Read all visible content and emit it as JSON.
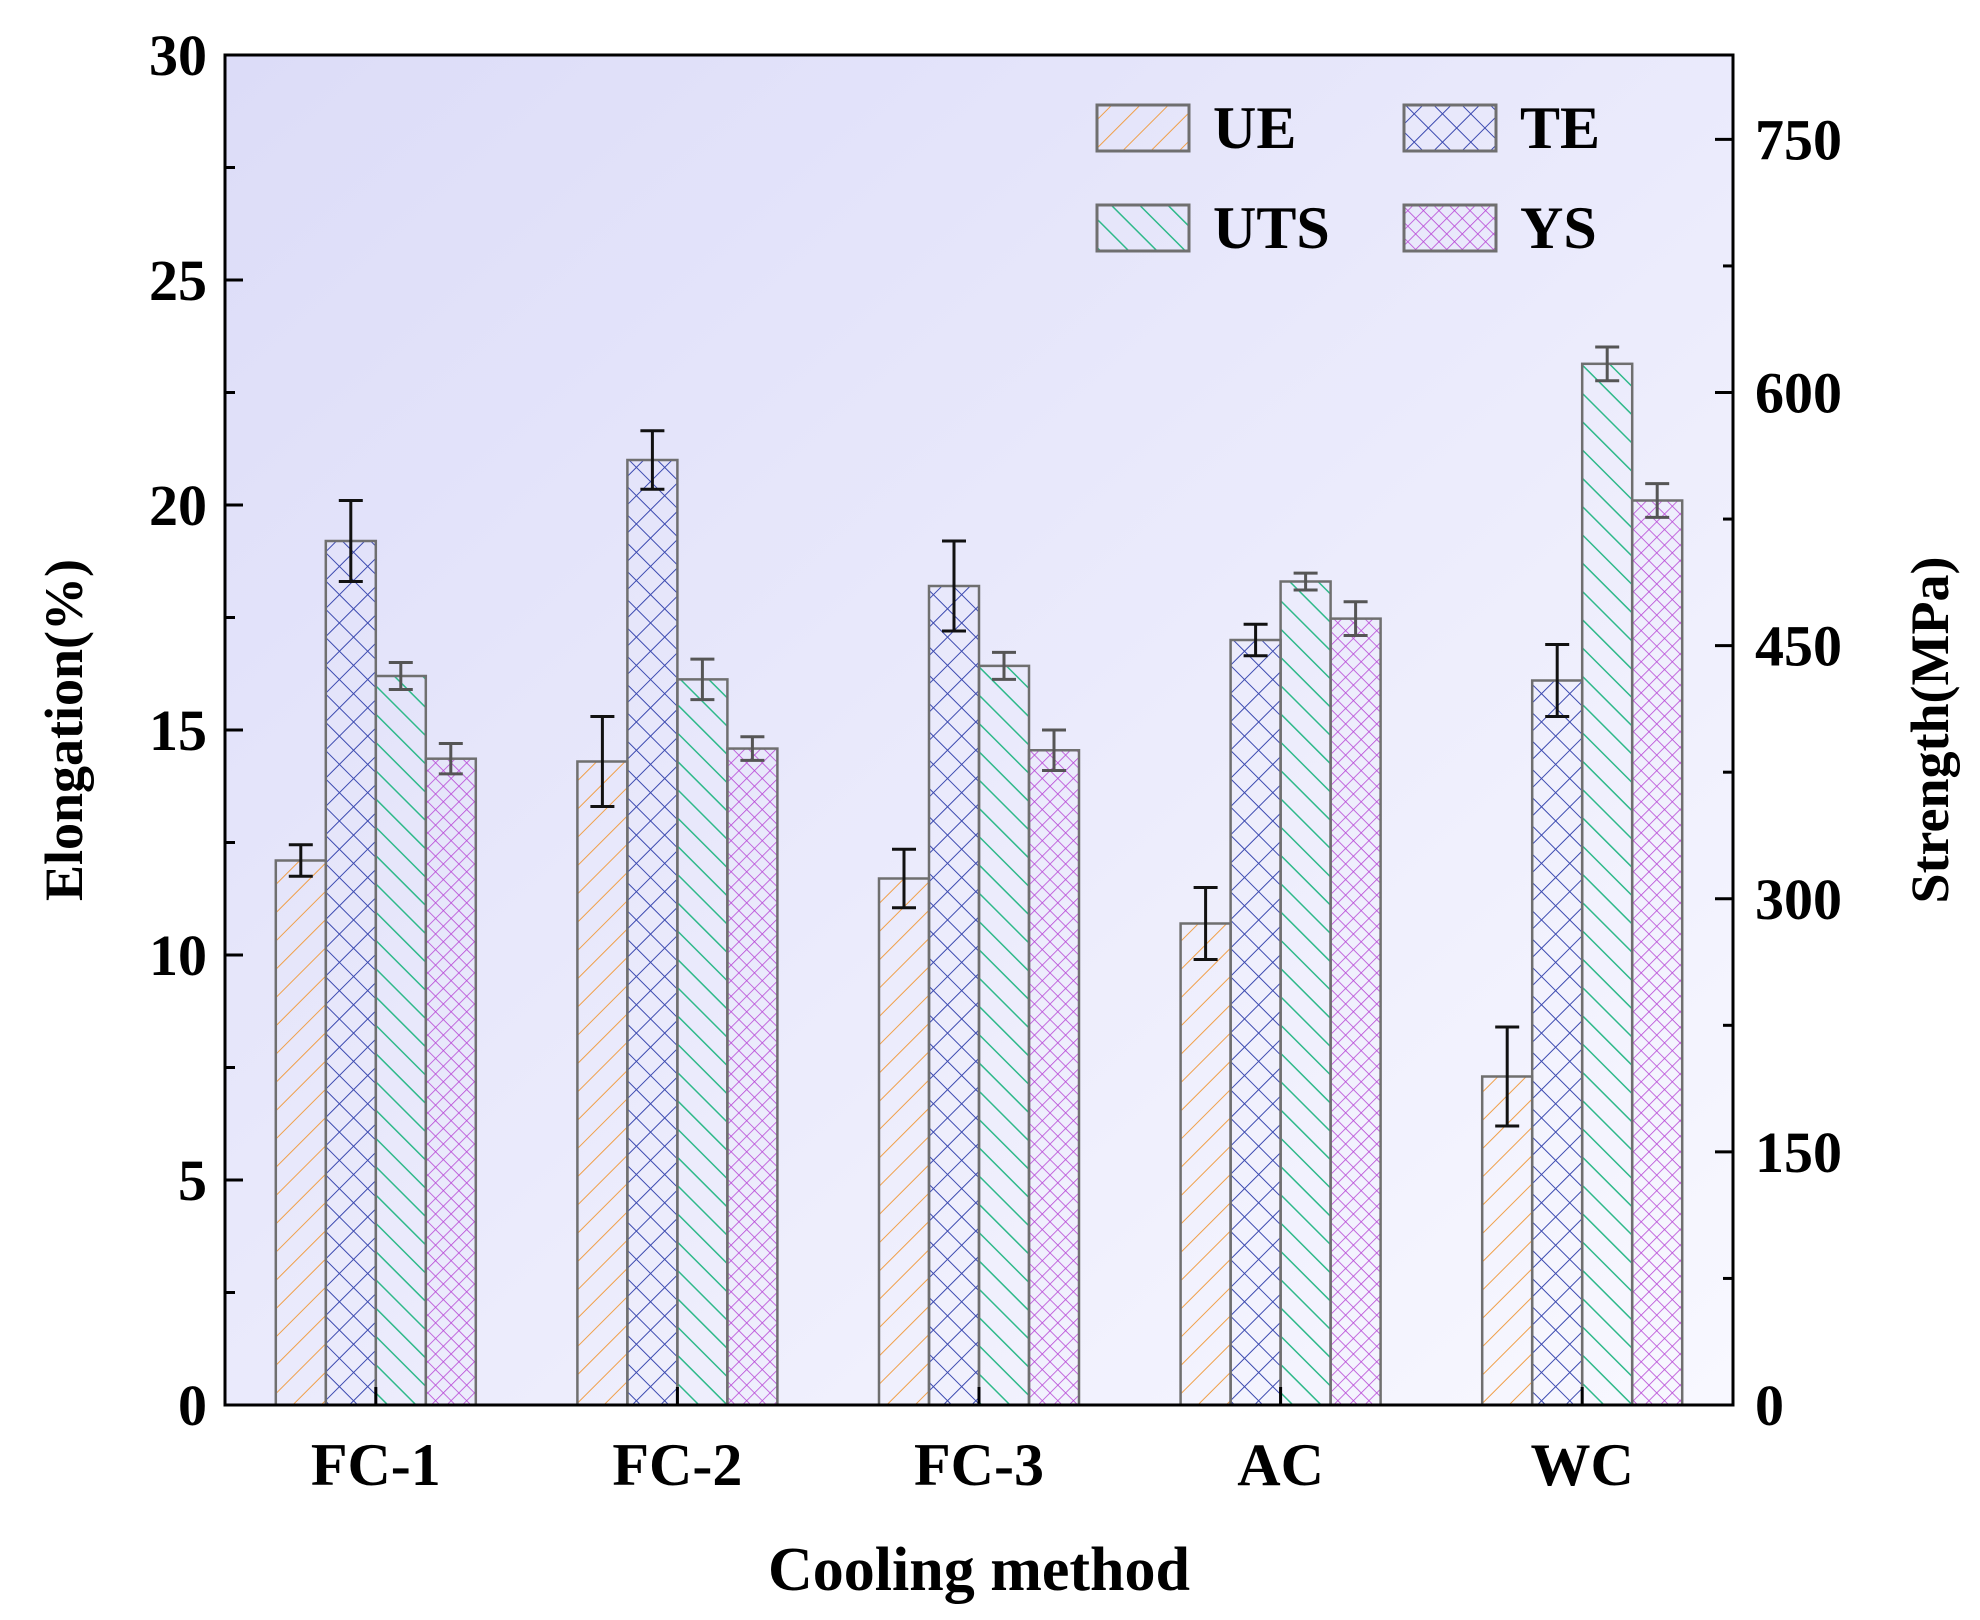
{
  "chart_data": {
    "type": "bar",
    "categories": [
      "FC-1",
      "FC-2",
      "FC-3",
      "AC",
      "WC"
    ],
    "xlabel": "Cooling method",
    "ylabel_left": "Elongation(%)",
    "ylabel_right": "Strength(MPa)",
    "ylim_left": [
      0,
      30
    ],
    "yticks_left": [
      0,
      5,
      10,
      15,
      20,
      25,
      30
    ],
    "ylim_right": [
      0,
      800
    ],
    "yticks_right": [
      0,
      150,
      300,
      450,
      600,
      750
    ],
    "series": [
      {
        "name": "UE",
        "axis": "left",
        "pattern": "hatch-diag-up",
        "color": "#f0a04a",
        "values": [
          12.1,
          14.3,
          11.7,
          10.7,
          7.3
        ],
        "errors": [
          0.35,
          1.0,
          0.65,
          0.8,
          1.1
        ]
      },
      {
        "name": "TE",
        "axis": "left",
        "pattern": "crosshatch",
        "color": "#3d4bb0",
        "values": [
          19.2,
          21.0,
          18.2,
          17.0,
          16.1
        ],
        "errors": [
          0.9,
          0.65,
          1.0,
          0.35,
          0.8
        ]
      },
      {
        "name": "UTS",
        "axis": "right",
        "pattern": "hatch-diag-down",
        "color": "#2fb98a",
        "values": [
          432,
          430,
          438,
          488,
          617
        ],
        "errors": [
          8,
          12,
          8,
          5,
          10
        ]
      },
      {
        "name": "YS",
        "axis": "right",
        "pattern": "crosshatch-fine",
        "color": "#b84ad6",
        "values": [
          383,
          389,
          388,
          466,
          536
        ],
        "errors": [
          9,
          7,
          12,
          10,
          10
        ]
      }
    ],
    "legend": {
      "placement": "top-right",
      "items": [
        "UE",
        "TE",
        "UTS",
        "YS"
      ]
    },
    "background_gradient": [
      "#dcdcf8",
      "#f8f8ff"
    ]
  }
}
